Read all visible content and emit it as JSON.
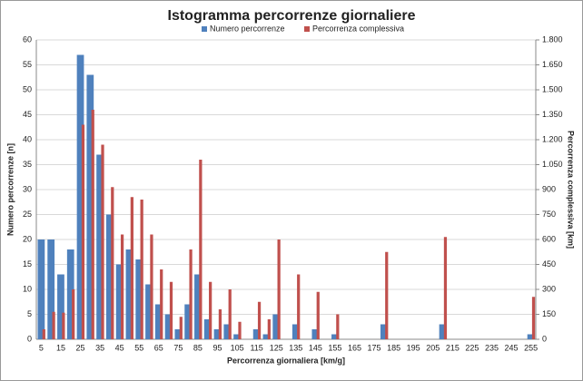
{
  "chart_data": {
    "type": "bar",
    "title": "Istogramma percorrenze giornaliere",
    "xlabel": "Percorrenza giornaliera [km/g]",
    "ylabel": "Numero percorrenze [n]",
    "y2label": "Percorrenza complessiva [km]",
    "categories": [
      5,
      null,
      15,
      null,
      25,
      null,
      35,
      null,
      45,
      null,
      55,
      null,
      65,
      null,
      75,
      null,
      85,
      null,
      95,
      null,
      105,
      null,
      115,
      null,
      125,
      null,
      135,
      null,
      145,
      null,
      155,
      null,
      165,
      null,
      175,
      null,
      185,
      null,
      195,
      null,
      205,
      null,
      215,
      null,
      225,
      null,
      235,
      null,
      245,
      null,
      255
    ],
    "series": [
      {
        "name": "Numero percorrenze",
        "color": "#4f81bd",
        "values": [
          20,
          20,
          13,
          18,
          57,
          53,
          37,
          25,
          15,
          18,
          16,
          11,
          7,
          5,
          2,
          7,
          13,
          4,
          2,
          3,
          1,
          0,
          2,
          1,
          5,
          0,
          3,
          0,
          2,
          0,
          1,
          0,
          0,
          0,
          0,
          3,
          0,
          0,
          0,
          0,
          0,
          3,
          0,
          0,
          0,
          0,
          0,
          0,
          0,
          0,
          1
        ]
      },
      {
        "name": "Percorrenza complessiva",
        "color": "#c0504d",
        "axis": "y2",
        "values": [
          60,
          165,
          160,
          300,
          1290,
          1380,
          1170,
          915,
          630,
          855,
          840,
          630,
          420,
          345,
          135,
          540,
          1080,
          345,
          180,
          300,
          105,
          0,
          225,
          120,
          600,
          0,
          390,
          0,
          285,
          0,
          150,
          0,
          0,
          0,
          0,
          525,
          0,
          0,
          0,
          0,
          0,
          615,
          0,
          0,
          0,
          0,
          0,
          0,
          0,
          0,
          255
        ]
      }
    ],
    "ylim": [
      0,
      60
    ],
    "yticks": [
      0,
      5,
      10,
      15,
      20,
      25,
      30,
      35,
      40,
      45,
      50,
      55,
      60
    ],
    "y2lim": [
      0,
      1800
    ],
    "y2ticks": [
      0,
      150,
      300,
      450,
      600,
      750,
      900,
      {
        "value": 1050,
        "label": "1.050"
      },
      {
        "value": 1200,
        "label": "1.200"
      },
      {
        "value": 1350,
        "label": "1.350"
      },
      {
        "value": 1500,
        "label": "1.500"
      },
      {
        "value": 1650,
        "label": "1.650"
      },
      {
        "value": 1800,
        "label": "1.800"
      }
    ],
    "grid": true,
    "legend": "top"
  }
}
